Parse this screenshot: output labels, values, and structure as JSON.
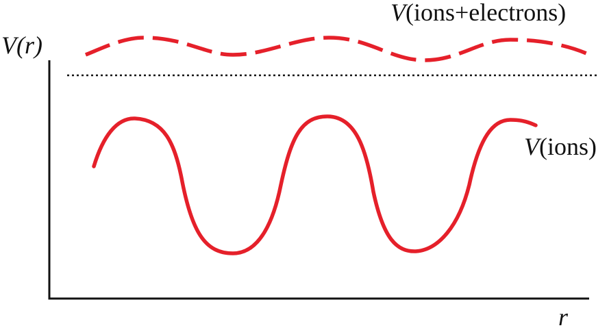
{
  "axes": {
    "y_label": "V(r)",
    "x_label": "r"
  },
  "curves": [
    {
      "symbol": "V",
      "args": "(ions+electrons)"
    },
    {
      "symbol": "V",
      "args": "(ions)"
    }
  ]
}
